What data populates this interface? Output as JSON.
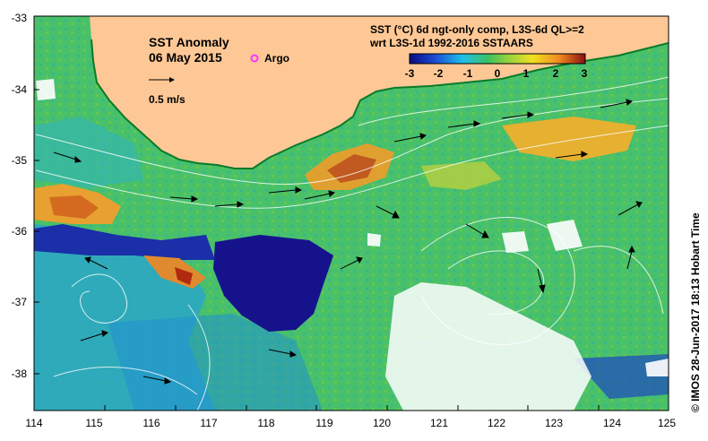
{
  "map": {
    "title": "SST Anomaly",
    "date": "06 May 2015",
    "argo_label": "Argo",
    "scale_label": "0.5 m/s",
    "product_line1": "SST (°C) 6d ngt-only comp, L3S-6d QL>=2",
    "product_line2": "wrt L3S-1d 1992-2016 SSTAARS",
    "credit": "© IMOS 28-Jun-2017 18:13 Hobart Time",
    "colorbar_ticks": [
      "-3",
      "-2",
      "-1",
      "0",
      "1",
      "2",
      "3"
    ],
    "x_ticks": [
      "114",
      "115",
      "116",
      "117",
      "118",
      "119",
      "120",
      "121",
      "122",
      "123",
      "124",
      "125"
    ],
    "y_ticks": [
      "-33",
      "-34",
      "-35",
      "-36",
      "-37",
      "-38"
    ],
    "colors": {
      "land": "#fdc896",
      "ocean_base": "#49c06a",
      "cold": "#16128c",
      "warm": "#d47020",
      "argo": "#ff33ff"
    }
  }
}
